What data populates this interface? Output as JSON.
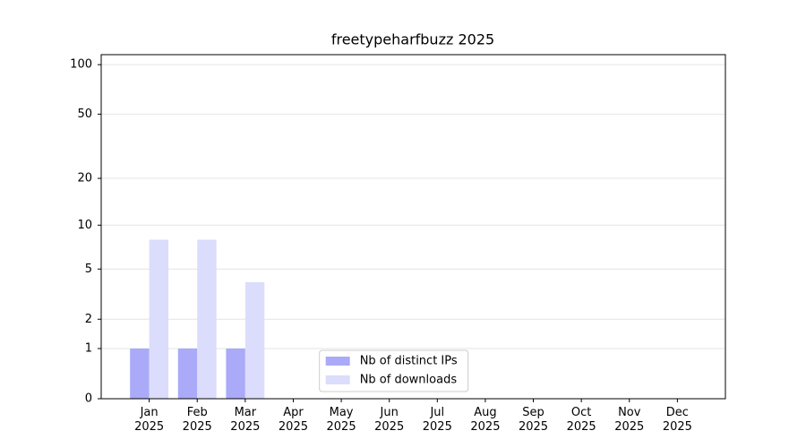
{
  "chart_data": {
    "type": "bar",
    "title": "freetypeharfbuzz 2025",
    "categories": [
      "Jan 2025",
      "Feb 2025",
      "Mar 2025",
      "Apr 2025",
      "May 2025",
      "Jun 2025",
      "Jul 2025",
      "Aug 2025",
      "Sep 2025",
      "Oct 2025",
      "Nov 2025",
      "Dec 2025"
    ],
    "series": [
      {
        "name": "Nb of distinct IPs",
        "color": "#aaaaf8",
        "values": [
          1,
          1,
          1,
          0,
          0,
          0,
          0,
          0,
          0,
          0,
          0,
          0
        ]
      },
      {
        "name": "Nb of downloads",
        "color": "#dcdcfc",
        "values": [
          8,
          8,
          4,
          0,
          0,
          0,
          0,
          0,
          0,
          0,
          0,
          0
        ]
      }
    ],
    "yscale": "log1p",
    "ylim": [
      0,
      115
    ],
    "yticks": [
      0,
      1,
      2,
      5,
      10,
      20,
      50,
      100
    ],
    "grid": true,
    "legend": "lower center"
  }
}
